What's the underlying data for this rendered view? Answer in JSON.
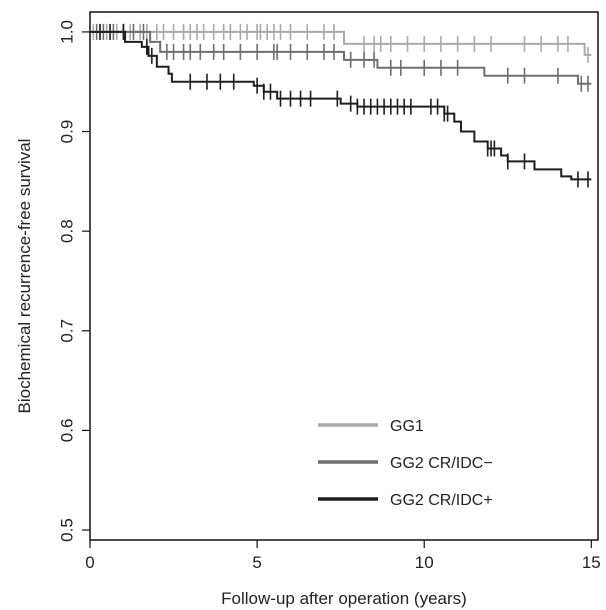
{
  "chart_data": {
    "type": "line",
    "subtype": "kaplan-meier step curves with censor ticks",
    "title": "",
    "xlabel": "Follow-up after operation (years)",
    "ylabel": "Biochemical recurrence-free survival",
    "xlim": [
      0,
      15.2
    ],
    "ylim": [
      0.49,
      1.02
    ],
    "xticks": [
      0,
      5,
      10,
      15
    ],
    "yticks": [
      0.5,
      0.6,
      0.7,
      0.8,
      0.9,
      1.0
    ],
    "ytick_labels": [
      "0.5",
      "0.6",
      "0.7",
      "0.8",
      "0.9",
      "1.0"
    ],
    "grid": false,
    "legend_position": "bottom-right",
    "series": [
      {
        "name": "GG1",
        "color": "#aaaaaa",
        "steps": [
          [
            0,
            1.0
          ],
          [
            7.6,
            0.988
          ],
          [
            14.8,
            0.977
          ]
        ],
        "end_x": 15.0,
        "censors": [
          0.1,
          0.3,
          0.5,
          0.8,
          1.0,
          1.2,
          1.5,
          1.7,
          2.0,
          2.2,
          2.5,
          2.8,
          3.0,
          3.2,
          3.4,
          3.7,
          4.0,
          4.2,
          4.5,
          4.7,
          5.0,
          5.1,
          5.3,
          5.5,
          5.7,
          6.0,
          6.5,
          7.0,
          7.3,
          8.2,
          8.5,
          8.7,
          9.0,
          9.5,
          10.0,
          10.5,
          11.0,
          11.5,
          12.0,
          13.0,
          13.5,
          14.0,
          14.3,
          14.9
        ]
      },
      {
        "name": "GG2 CR/IDC−",
        "color": "#6e6e6e",
        "steps": [
          [
            0,
            1.0
          ],
          [
            1.8,
            0.99
          ],
          [
            2.1,
            0.98
          ],
          [
            7.6,
            0.972
          ],
          [
            8.6,
            0.964
          ],
          [
            11.8,
            0.956
          ],
          [
            14.6,
            0.948
          ]
        ],
        "end_x": 15.0,
        "censors": [
          0.2,
          0.4,
          0.7,
          1.0,
          1.3,
          1.6,
          2.3,
          2.5,
          2.8,
          3.0,
          3.3,
          3.7,
          4.0,
          4.5,
          5.0,
          5.5,
          5.6,
          6.0,
          6.5,
          7.0,
          7.3,
          7.8,
          8.2,
          8.5,
          9.0,
          9.3,
          10.0,
          10.5,
          11.0,
          12.5,
          13.0,
          14.0,
          14.7,
          14.9
        ]
      },
      {
        "name": "GG2 CR/IDC+",
        "color": "#1e1e1e",
        "steps": [
          [
            0,
            1.0
          ],
          [
            1.05,
            0.99
          ],
          [
            1.55,
            0.985
          ],
          [
            1.75,
            0.976
          ],
          [
            2.0,
            0.965
          ],
          [
            2.35,
            0.958
          ],
          [
            2.45,
            0.95
          ],
          [
            4.9,
            0.946
          ],
          [
            5.2,
            0.94
          ],
          [
            5.6,
            0.933
          ],
          [
            7.5,
            0.928
          ],
          [
            8.0,
            0.925
          ],
          [
            10.6,
            0.918
          ],
          [
            10.9,
            0.91
          ],
          [
            11.1,
            0.9
          ],
          [
            11.5,
            0.89
          ],
          [
            11.9,
            0.883
          ],
          [
            12.3,
            0.876
          ],
          [
            12.5,
            0.87
          ],
          [
            13.3,
            0.862
          ],
          [
            14.1,
            0.855
          ],
          [
            14.4,
            0.852
          ]
        ],
        "end_x": 15.0,
        "censors": [
          0.3,
          0.6,
          1.0,
          1.7,
          1.85,
          3.0,
          3.5,
          3.9,
          4.3,
          5.0,
          5.2,
          5.4,
          5.7,
          6.0,
          6.3,
          6.6,
          7.4,
          7.8,
          8.0,
          8.2,
          8.4,
          8.6,
          8.8,
          9.0,
          9.2,
          9.4,
          9.6,
          10.2,
          10.4,
          10.6,
          10.7,
          11.9,
          12.0,
          12.1,
          12.5,
          13.0,
          14.6,
          14.9
        ]
      }
    ]
  }
}
